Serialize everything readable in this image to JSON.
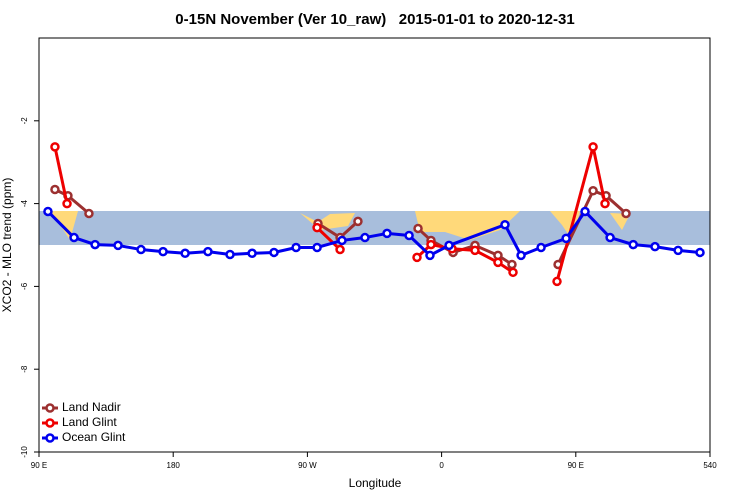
{
  "chart_data": {
    "type": "line",
    "title": "0-15N November (Ver 10_raw)   2015-01-01 to 2020-12-31",
    "xlabel": "Longitude",
    "ylabel": "XCO2 - MLO trend (ppm)",
    "xlim": [
      90,
      540
    ],
    "ylim": [
      -10,
      0
    ],
    "xticks": [
      {
        "value": 90,
        "label": "90 E"
      },
      180,
      {
        "value": 270,
        "label": "90 W"
      },
      {
        "value": 360,
        "label": "0"
      },
      {
        "value": 450,
        "label": "90 E"
      },
      540
    ],
    "yticks": [
      -10,
      -8,
      -6,
      -4,
      -2
    ],
    "legend": "bottom-left",
    "series": [
      {
        "name": "Land Nadir",
        "color": "#9c3030",
        "x": [
          100.7,
          109.4,
          123.5,
          null,
          277.1,
          291.9,
          303.9,
          null,
          344.2,
          352.9,
          367.7,
          382.4,
          397.8,
          407.2,
          null,
          438.1,
          461.6,
          470.3,
          483.7
        ],
        "values": [
          -3.66,
          -3.81,
          -4.24,
          null,
          -4.48,
          -4.82,
          -4.43,
          null,
          -4.6,
          -4.89,
          -5.18,
          -5.01,
          -5.25,
          -5.47,
          null,
          -5.47,
          -3.69,
          -3.81,
          -4.24
        ]
      },
      {
        "name": "Land Glint",
        "color": "#ee0000",
        "x": [
          100.7,
          108.8,
          null,
          276.5,
          291.9,
          null,
          343.5,
          352.9,
          367,
          382.4,
          397.8,
          407.9,
          null,
          437.4,
          461.6,
          469.6
        ],
        "values": [
          -2.63,
          -4.0,
          null,
          -4.58,
          -5.11,
          null,
          -5.3,
          -4.99,
          -5.09,
          -5.13,
          -5.42,
          -5.66,
          null,
          -5.88,
          -2.63,
          -4.0
        ]
      },
      {
        "name": "Ocean Glint",
        "color": "#0000ee",
        "x": [
          96,
          113.5,
          127.6,
          143,
          158.4,
          173.2,
          188,
          203.3,
          218.1,
          232.9,
          247.6,
          262.4,
          276.5,
          293.2,
          308.6,
          323.4,
          338.2,
          352.2,
          365,
          402.5,
          413.3,
          426.7,
          443.5,
          456.2,
          473,
          488.5,
          503.1,
          518.6,
          533.3
        ],
        "values": [
          -4.19,
          -4.82,
          -4.99,
          -5.01,
          -5.11,
          -5.16,
          -5.2,
          -5.16,
          -5.23,
          -5.2,
          -5.18,
          -5.06,
          -5.06,
          -4.89,
          -4.82,
          -4.72,
          -4.77,
          -5.25,
          -5.01,
          -4.51,
          -5.25,
          -5.06,
          -4.84,
          -4.19,
          -4.82,
          -4.99,
          -5.04,
          -5.13,
          -5.18
        ]
      }
    ]
  }
}
